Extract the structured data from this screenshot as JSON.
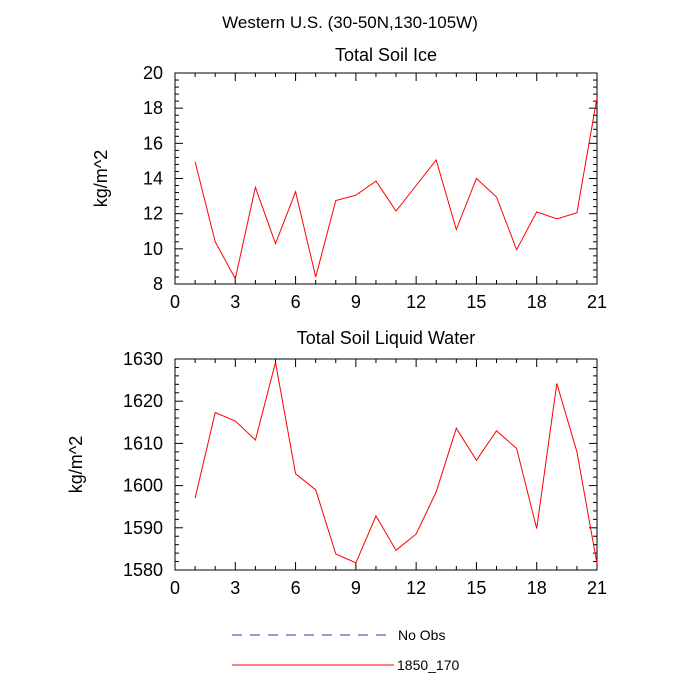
{
  "page_title": "Western U.S. (30-50N,130-105W)",
  "chart_data": [
    {
      "type": "line",
      "title": "Total Soil Ice",
      "xlabel": "",
      "ylabel": "kg/m^2",
      "xlim": [
        0,
        21
      ],
      "ylim": [
        8,
        20
      ],
      "xticks": [
        0,
        3,
        6,
        9,
        12,
        15,
        18,
        21
      ],
      "yticks": [
        8,
        10,
        12,
        14,
        16,
        18,
        20
      ],
      "grid": false,
      "x": [
        1,
        2,
        3,
        4,
        5,
        6,
        7,
        8,
        9,
        10,
        11,
        12,
        13,
        14,
        15,
        16,
        17,
        18,
        19,
        20,
        21
      ],
      "series": [
        {
          "name": "1850_170",
          "color": "#ff0000",
          "values": [
            14.95,
            10.4,
            8.3,
            13.5,
            10.3,
            13.25,
            8.4,
            12.75,
            13.05,
            13.85,
            12.15,
            13.6,
            15.05,
            11.1,
            14.0,
            12.95,
            9.95,
            12.1,
            11.7,
            12.05,
            18.6
          ]
        }
      ]
    },
    {
      "type": "line",
      "title": "Total Soil Liquid Water",
      "xlabel": "",
      "ylabel": "kg/m^2",
      "xlim": [
        0,
        21
      ],
      "ylim": [
        1580,
        1630
      ],
      "xticks": [
        0,
        3,
        6,
        9,
        12,
        15,
        18,
        21
      ],
      "yticks": [
        1580,
        1590,
        1600,
        1610,
        1620,
        1630
      ],
      "grid": false,
      "x": [
        1,
        2,
        3,
        4,
        5,
        6,
        7,
        8,
        9,
        10,
        11,
        12,
        13,
        14,
        15,
        16,
        17,
        18,
        19,
        20,
        21
      ],
      "series": [
        {
          "name": "1850_170",
          "color": "#ff0000",
          "values": [
            1597,
            1617.3,
            1615.3,
            1610.8,
            1629.2,
            1602.8,
            1599,
            1583.8,
            1581.7,
            1592.8,
            1584.7,
            1588.5,
            1598.5,
            1613.6,
            1606,
            1613,
            1608.8,
            1589.8,
            1624.2,
            1608,
            1581.5
          ]
        }
      ]
    }
  ],
  "legend": {
    "placement": "bottom",
    "items": [
      {
        "label": "No Obs",
        "color": "#3333aa",
        "style": "dashed"
      },
      {
        "label": "1850_170",
        "color": "#ff0000",
        "style": "solid"
      }
    ]
  }
}
